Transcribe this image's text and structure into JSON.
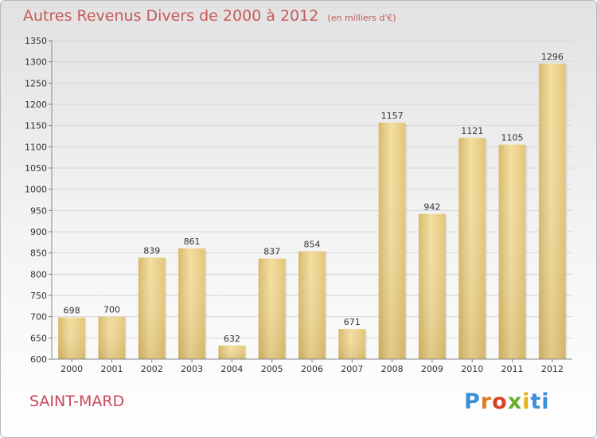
{
  "chart_data": {
    "type": "bar",
    "title": "Autres Revenus Divers de 2000 à 2012",
    "subtitle": "(en milliers d'€)",
    "categories": [
      "2000",
      "2001",
      "2002",
      "2003",
      "2004",
      "2005",
      "2006",
      "2007",
      "2008",
      "2009",
      "2010",
      "2011",
      "2012"
    ],
    "values": [
      698,
      700,
      839,
      861,
      632,
      837,
      854,
      671,
      1157,
      942,
      1121,
      1105,
      1296
    ],
    "ylim": [
      600,
      1350
    ],
    "yticks": [
      600,
      650,
      700,
      750,
      800,
      850,
      900,
      950,
      1000,
      1050,
      1100,
      1150,
      1200,
      1250,
      1300,
      1350
    ],
    "grid": true,
    "colors": {
      "bar": "#e8cf86",
      "title": "#c85a5a",
      "location": "#c8485a"
    }
  },
  "footer": {
    "location": "SAINT-MARD",
    "logo": "Proxiti"
  }
}
